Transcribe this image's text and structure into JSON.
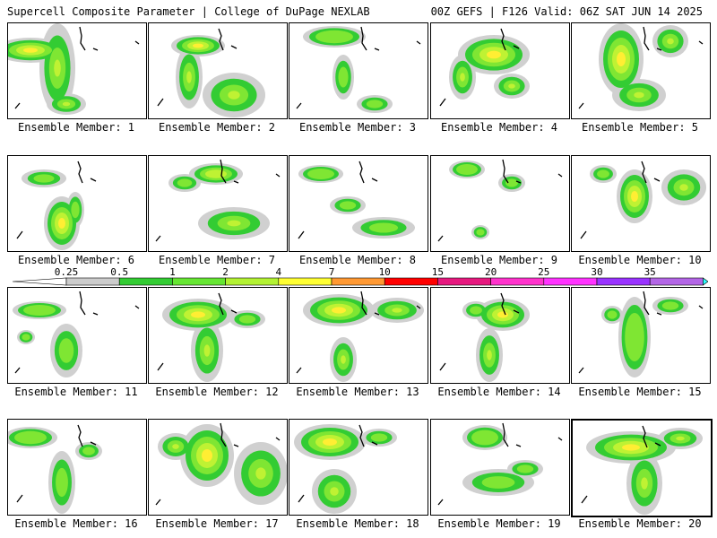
{
  "header": {
    "left": "Supercell Composite Parameter | College of DuPage NEXLAB",
    "right": "00Z GEFS | F126 Valid: 06Z SAT JUN 14 2025"
  },
  "panel_label_prefix": "Ensemble Member:",
  "members": [
    {
      "label": "Ensemble Member: 1",
      "peak_level": 5
    },
    {
      "label": "Ensemble Member: 2",
      "peak_level": 5
    },
    {
      "label": "Ensemble Member: 3",
      "peak_level": 3
    },
    {
      "label": "Ensemble Member: 4",
      "peak_level": 5
    },
    {
      "label": "Ensemble Member: 5",
      "peak_level": 5
    },
    {
      "label": "Ensemble Member: 6",
      "peak_level": 6
    },
    {
      "label": "Ensemble Member: 7",
      "peak_level": 4
    },
    {
      "label": "Ensemble Member: 8",
      "peak_level": 3
    },
    {
      "label": "Ensemble Member: 9",
      "peak_level": 3
    },
    {
      "label": "Ensemble Member: 10",
      "peak_level": 6
    },
    {
      "label": "Ensemble Member: 11",
      "peak_level": 3
    },
    {
      "label": "Ensemble Member: 12",
      "peak_level": 5
    },
    {
      "label": "Ensemble Member: 13",
      "peak_level": 6
    },
    {
      "label": "Ensemble Member: 14",
      "peak_level": 5
    },
    {
      "label": "Ensemble Member: 15",
      "peak_level": 3
    },
    {
      "label": "Ensemble Member: 16",
      "peak_level": 3
    },
    {
      "label": "Ensemble Member: 17",
      "peak_level": 5
    },
    {
      "label": "Ensemble Member: 18",
      "peak_level": 5
    },
    {
      "label": "Ensemble Member: 19",
      "peak_level": 3
    },
    {
      "label": "Ensemble Member: 20",
      "peak_level": 6,
      "selected": true
    }
  ],
  "colorbar": {
    "levels": [
      "0.25",
      "0.5",
      "1",
      "2",
      "4",
      "7",
      "10",
      "15",
      "20",
      "25",
      "30",
      "35"
    ],
    "colors": [
      "#cccccc",
      "#33cc33",
      "#66e633",
      "#b3f233",
      "#ffff33",
      "#ff9933",
      "#ff0000",
      "#e6197f",
      "#ff33cc",
      "#ff33ff",
      "#9933ff",
      "#b366e6",
      "#33ffff"
    ],
    "shading_colors": [
      "#d0d0d0",
      "#33cc33",
      "#7fe633",
      "#bff233",
      "#ffee33",
      "#ff8c1a",
      "#e60000"
    ]
  }
}
